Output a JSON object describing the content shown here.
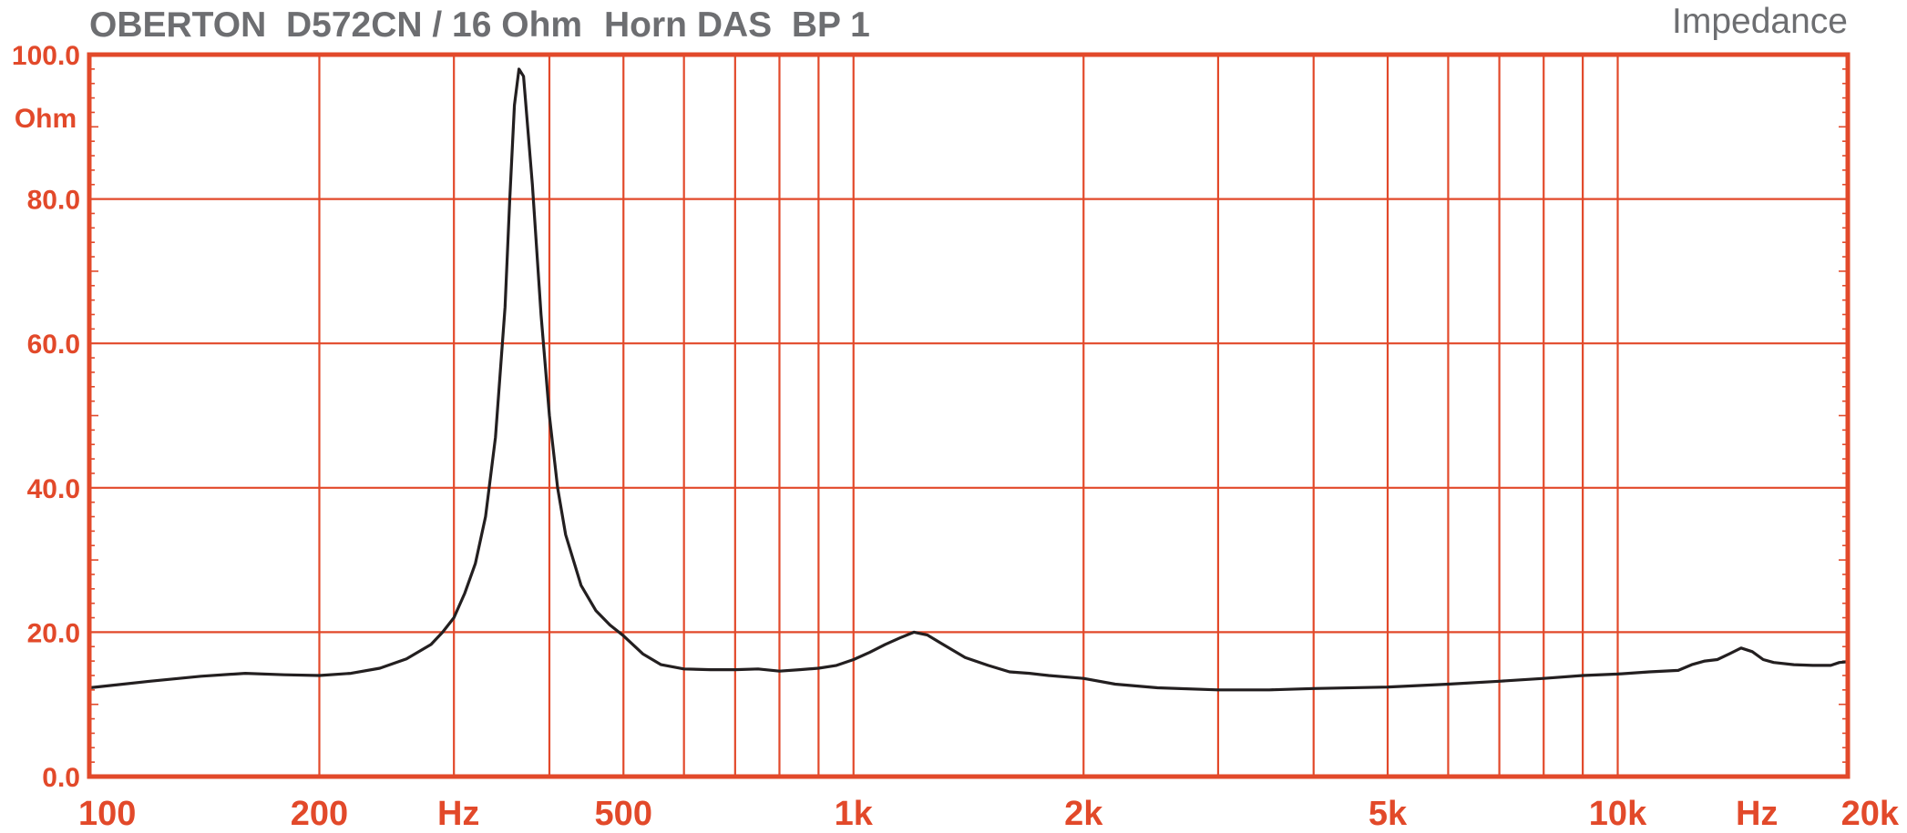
{
  "chart_data": {
    "type": "line",
    "title": "OBERTON  D572CN / 16 Ohm",
    "subtitle": "Horn DAS  BP 1",
    "corner_label": "Impedance",
    "ylabel": "Ohm",
    "xunit_label": "Hz",
    "xscale": "log",
    "xlim": [
      100,
      20000
    ],
    "ylim": [
      0,
      100
    ],
    "grid": true,
    "colors": {
      "grid": "#e2492a",
      "curve": "#231f20",
      "title": "#6d6e71",
      "axis_labels": "#e2492a"
    },
    "y_ticks": [
      {
        "value": 0,
        "label": "0.0"
      },
      {
        "value": 20,
        "label": "20.0"
      },
      {
        "value": 40,
        "label": "40.0"
      },
      {
        "value": 60,
        "label": "60.0"
      },
      {
        "value": 80,
        "label": "80.0"
      },
      {
        "value": 100,
        "label": "100.0"
      }
    ],
    "x_tick_labels": [
      {
        "value": 100,
        "label": "100"
      },
      {
        "value": 200,
        "label": "200"
      },
      {
        "value": 500,
        "label": "500"
      },
      {
        "value": 1000,
        "label": "1k"
      },
      {
        "value": 2000,
        "label": "2k"
      },
      {
        "value": 5000,
        "label": "5k"
      },
      {
        "value": 10000,
        "label": "10k"
      },
      {
        "value": 20000,
        "label": "20k"
      }
    ],
    "x_unit_positions": [
      300,
      15000
    ],
    "x_gridlines": [
      200,
      300,
      400,
      500,
      600,
      700,
      800,
      900,
      1000,
      2000,
      3000,
      4000,
      5000,
      6000,
      7000,
      8000,
      9000,
      10000
    ],
    "y_gridlines": [
      20,
      40,
      60,
      80
    ],
    "series": [
      {
        "x": [
          100,
          120,
          140,
          160,
          180,
          200,
          220,
          240,
          260,
          280,
          290,
          300,
          310,
          320,
          330,
          340,
          350,
          355,
          360,
          365,
          370,
          380,
          390,
          400,
          410,
          420,
          440,
          460,
          480,
          500,
          530,
          560,
          600,
          650,
          700,
          750,
          800,
          850,
          900,
          950,
          1000,
          1050,
          1100,
          1150,
          1200,
          1250,
          1300,
          1400,
          1500,
          1600,
          1700,
          1800,
          2000,
          2200,
          2500,
          3000,
          3500,
          4000,
          5000,
          6000,
          7000,
          8000,
          9000,
          10000,
          11000,
          12000,
          12500,
          13000,
          13500,
          14000,
          14500,
          15000,
          15500,
          16000,
          17000,
          18000,
          19000,
          19500,
          20000
        ],
        "values": [
          12.3,
          13.2,
          13.9,
          14.3,
          14.1,
          14.0,
          14.3,
          15.0,
          16.3,
          18.3,
          20.0,
          22.0,
          25.4,
          29.5,
          36.0,
          47.0,
          65.0,
          80.0,
          93.0,
          98.0,
          97.0,
          82.0,
          64.0,
          50.0,
          40.0,
          33.5,
          26.5,
          23.0,
          21.0,
          19.5,
          17.0,
          15.5,
          14.9,
          14.8,
          14.8,
          14.9,
          14.6,
          14.8,
          15.0,
          15.4,
          16.2,
          17.2,
          18.3,
          19.2,
          20.0,
          19.6,
          18.5,
          16.5,
          15.4,
          14.5,
          14.3,
          14.0,
          13.6,
          12.8,
          12.3,
          12.0,
          12.0,
          12.2,
          12.4,
          12.8,
          13.2,
          13.6,
          14.0,
          14.2,
          14.5,
          14.7,
          15.5,
          16.0,
          16.2,
          17.0,
          17.8,
          17.3,
          16.2,
          15.8,
          15.5,
          15.4,
          15.4,
          15.8,
          15.9
        ]
      }
    ]
  }
}
